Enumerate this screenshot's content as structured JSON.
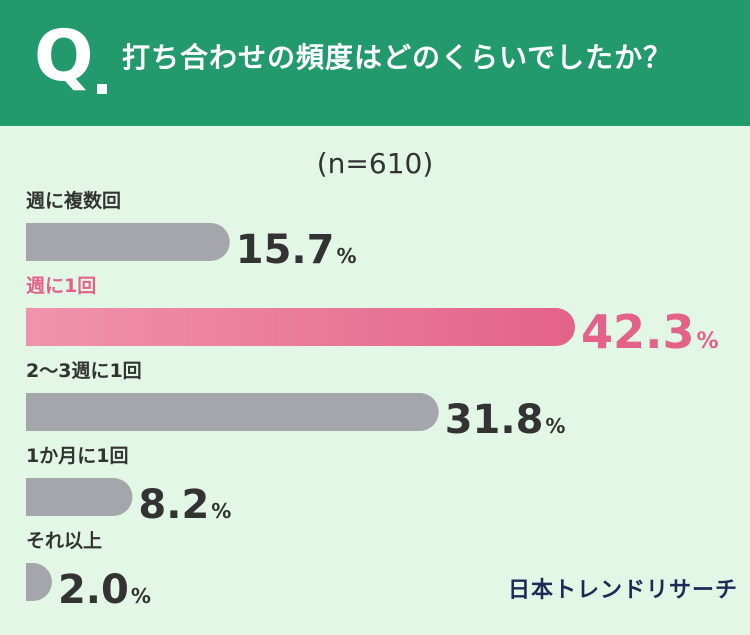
{
  "header": {
    "q_mark": "Q",
    "question": "打ち合わせの頻度はどのくらいでしたか？"
  },
  "sample_size": "(n=610)",
  "brand": "日本トレンドリサーチ",
  "colors": {
    "header_bg": "#239a6e",
    "background": "#e3f7e6",
    "bar_default": "#a4a6ab",
    "highlight_start": "#f094ac",
    "highlight_end": "#e4628a",
    "highlight_text": "#e4628a",
    "text": "#333333"
  },
  "chart_data": {
    "type": "bar",
    "orientation": "horizontal",
    "unit": "%",
    "categories": [
      "週に複数回",
      "週に1回",
      "2～3週に1回",
      "1か月に1回",
      "それ以上"
    ],
    "values": [
      15.7,
      42.3,
      31.8,
      8.2,
      2.0
    ],
    "highlight_index": 1,
    "xlim": [
      0,
      42.3
    ]
  }
}
